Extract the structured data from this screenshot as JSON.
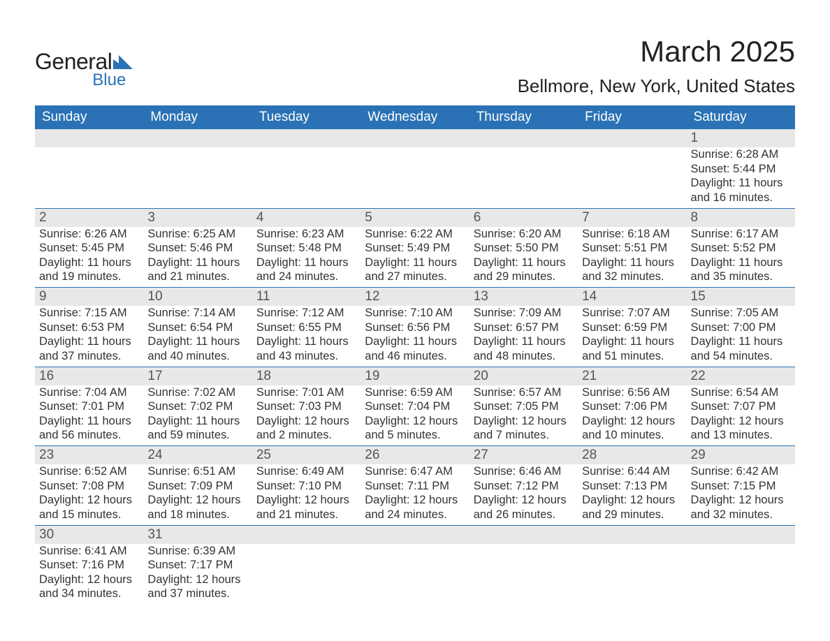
{
  "logo": {
    "text1": "General",
    "text2": "Blue",
    "shape_color": "#2a72b5"
  },
  "title": "March 2025",
  "location": "Bellmore, New York, United States",
  "colors": {
    "header_bg": "#2a72b5",
    "header_text": "#ffffff",
    "daynum_bg": "#e8e8e8",
    "border": "#2a72b5",
    "text": "#333333"
  },
  "day_names": [
    "Sunday",
    "Monday",
    "Tuesday",
    "Wednesday",
    "Thursday",
    "Friday",
    "Saturday"
  ],
  "weeks": [
    [
      {
        "n": "",
        "sr": "",
        "ss": "",
        "dl": ""
      },
      {
        "n": "",
        "sr": "",
        "ss": "",
        "dl": ""
      },
      {
        "n": "",
        "sr": "",
        "ss": "",
        "dl": ""
      },
      {
        "n": "",
        "sr": "",
        "ss": "",
        "dl": ""
      },
      {
        "n": "",
        "sr": "",
        "ss": "",
        "dl": ""
      },
      {
        "n": "",
        "sr": "",
        "ss": "",
        "dl": ""
      },
      {
        "n": "1",
        "sr": "Sunrise: 6:28 AM",
        "ss": "Sunset: 5:44 PM",
        "dl": "Daylight: 11 hours and 16 minutes."
      }
    ],
    [
      {
        "n": "2",
        "sr": "Sunrise: 6:26 AM",
        "ss": "Sunset: 5:45 PM",
        "dl": "Daylight: 11 hours and 19 minutes."
      },
      {
        "n": "3",
        "sr": "Sunrise: 6:25 AM",
        "ss": "Sunset: 5:46 PM",
        "dl": "Daylight: 11 hours and 21 minutes."
      },
      {
        "n": "4",
        "sr": "Sunrise: 6:23 AM",
        "ss": "Sunset: 5:48 PM",
        "dl": "Daylight: 11 hours and 24 minutes."
      },
      {
        "n": "5",
        "sr": "Sunrise: 6:22 AM",
        "ss": "Sunset: 5:49 PM",
        "dl": "Daylight: 11 hours and 27 minutes."
      },
      {
        "n": "6",
        "sr": "Sunrise: 6:20 AM",
        "ss": "Sunset: 5:50 PM",
        "dl": "Daylight: 11 hours and 29 minutes."
      },
      {
        "n": "7",
        "sr": "Sunrise: 6:18 AM",
        "ss": "Sunset: 5:51 PM",
        "dl": "Daylight: 11 hours and 32 minutes."
      },
      {
        "n": "8",
        "sr": "Sunrise: 6:17 AM",
        "ss": "Sunset: 5:52 PM",
        "dl": "Daylight: 11 hours and 35 minutes."
      }
    ],
    [
      {
        "n": "9",
        "sr": "Sunrise: 7:15 AM",
        "ss": "Sunset: 6:53 PM",
        "dl": "Daylight: 11 hours and 37 minutes."
      },
      {
        "n": "10",
        "sr": "Sunrise: 7:14 AM",
        "ss": "Sunset: 6:54 PM",
        "dl": "Daylight: 11 hours and 40 minutes."
      },
      {
        "n": "11",
        "sr": "Sunrise: 7:12 AM",
        "ss": "Sunset: 6:55 PM",
        "dl": "Daylight: 11 hours and 43 minutes."
      },
      {
        "n": "12",
        "sr": "Sunrise: 7:10 AM",
        "ss": "Sunset: 6:56 PM",
        "dl": "Daylight: 11 hours and 46 minutes."
      },
      {
        "n": "13",
        "sr": "Sunrise: 7:09 AM",
        "ss": "Sunset: 6:57 PM",
        "dl": "Daylight: 11 hours and 48 minutes."
      },
      {
        "n": "14",
        "sr": "Sunrise: 7:07 AM",
        "ss": "Sunset: 6:59 PM",
        "dl": "Daylight: 11 hours and 51 minutes."
      },
      {
        "n": "15",
        "sr": "Sunrise: 7:05 AM",
        "ss": "Sunset: 7:00 PM",
        "dl": "Daylight: 11 hours and 54 minutes."
      }
    ],
    [
      {
        "n": "16",
        "sr": "Sunrise: 7:04 AM",
        "ss": "Sunset: 7:01 PM",
        "dl": "Daylight: 11 hours and 56 minutes."
      },
      {
        "n": "17",
        "sr": "Sunrise: 7:02 AM",
        "ss": "Sunset: 7:02 PM",
        "dl": "Daylight: 11 hours and 59 minutes."
      },
      {
        "n": "18",
        "sr": "Sunrise: 7:01 AM",
        "ss": "Sunset: 7:03 PM",
        "dl": "Daylight: 12 hours and 2 minutes."
      },
      {
        "n": "19",
        "sr": "Sunrise: 6:59 AM",
        "ss": "Sunset: 7:04 PM",
        "dl": "Daylight: 12 hours and 5 minutes."
      },
      {
        "n": "20",
        "sr": "Sunrise: 6:57 AM",
        "ss": "Sunset: 7:05 PM",
        "dl": "Daylight: 12 hours and 7 minutes."
      },
      {
        "n": "21",
        "sr": "Sunrise: 6:56 AM",
        "ss": "Sunset: 7:06 PM",
        "dl": "Daylight: 12 hours and 10 minutes."
      },
      {
        "n": "22",
        "sr": "Sunrise: 6:54 AM",
        "ss": "Sunset: 7:07 PM",
        "dl": "Daylight: 12 hours and 13 minutes."
      }
    ],
    [
      {
        "n": "23",
        "sr": "Sunrise: 6:52 AM",
        "ss": "Sunset: 7:08 PM",
        "dl": "Daylight: 12 hours and 15 minutes."
      },
      {
        "n": "24",
        "sr": "Sunrise: 6:51 AM",
        "ss": "Sunset: 7:09 PM",
        "dl": "Daylight: 12 hours and 18 minutes."
      },
      {
        "n": "25",
        "sr": "Sunrise: 6:49 AM",
        "ss": "Sunset: 7:10 PM",
        "dl": "Daylight: 12 hours and 21 minutes."
      },
      {
        "n": "26",
        "sr": "Sunrise: 6:47 AM",
        "ss": "Sunset: 7:11 PM",
        "dl": "Daylight: 12 hours and 24 minutes."
      },
      {
        "n": "27",
        "sr": "Sunrise: 6:46 AM",
        "ss": "Sunset: 7:12 PM",
        "dl": "Daylight: 12 hours and 26 minutes."
      },
      {
        "n": "28",
        "sr": "Sunrise: 6:44 AM",
        "ss": "Sunset: 7:13 PM",
        "dl": "Daylight: 12 hours and 29 minutes."
      },
      {
        "n": "29",
        "sr": "Sunrise: 6:42 AM",
        "ss": "Sunset: 7:15 PM",
        "dl": "Daylight: 12 hours and 32 minutes."
      }
    ],
    [
      {
        "n": "30",
        "sr": "Sunrise: 6:41 AM",
        "ss": "Sunset: 7:16 PM",
        "dl": "Daylight: 12 hours and 34 minutes."
      },
      {
        "n": "31",
        "sr": "Sunrise: 6:39 AM",
        "ss": "Sunset: 7:17 PM",
        "dl": "Daylight: 12 hours and 37 minutes."
      },
      {
        "n": "",
        "sr": "",
        "ss": "",
        "dl": ""
      },
      {
        "n": "",
        "sr": "",
        "ss": "",
        "dl": ""
      },
      {
        "n": "",
        "sr": "",
        "ss": "",
        "dl": ""
      },
      {
        "n": "",
        "sr": "",
        "ss": "",
        "dl": ""
      },
      {
        "n": "",
        "sr": "",
        "ss": "",
        "dl": ""
      }
    ]
  ]
}
